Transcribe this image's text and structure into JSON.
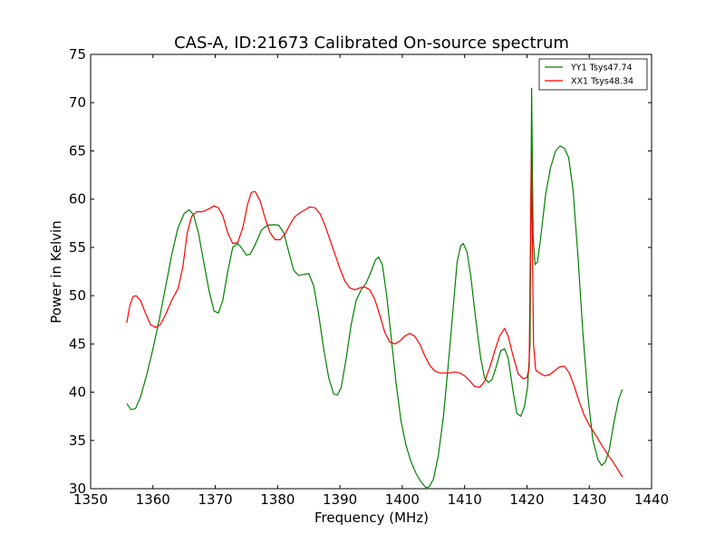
{
  "chart_data": {
    "type": "line",
    "title": "CAS-A, ID:21673 Calibrated On-source spectrum",
    "xlabel": "Frequency (MHz)",
    "ylabel": "Power in Kelvin",
    "xlim": [
      1350,
      1440
    ],
    "ylim": [
      30,
      75
    ],
    "xticks": [
      "1350",
      "1360",
      "1370",
      "1380",
      "1390",
      "1400",
      "1410",
      "1420",
      "1430",
      "1440"
    ],
    "yticks": [
      "30",
      "35",
      "40",
      "45",
      "50",
      "55",
      "60",
      "65",
      "70",
      "75"
    ],
    "grid": false,
    "legend_position": "top-right",
    "series": [
      {
        "name": "YY1 Tsys47.74",
        "color": "#008000",
        "points": [
          [
            1355.8,
            38.8
          ],
          [
            1356.5,
            38.2
          ],
          [
            1357.2,
            38.3
          ],
          [
            1358,
            39.5
          ],
          [
            1359,
            41.8
          ],
          [
            1360,
            44.5
          ],
          [
            1361,
            47.5
          ],
          [
            1362,
            50.8
          ],
          [
            1363,
            54.2
          ],
          [
            1364,
            57
          ],
          [
            1365,
            58.5
          ],
          [
            1365.8,
            58.9
          ],
          [
            1366.5,
            58.4
          ],
          [
            1367.3,
            56.5
          ],
          [
            1368,
            54
          ],
          [
            1369,
            50.5
          ],
          [
            1369.8,
            48.4
          ],
          [
            1370.5,
            48.2
          ],
          [
            1371.2,
            49.5
          ],
          [
            1372,
            52.5
          ],
          [
            1372.8,
            55
          ],
          [
            1373.6,
            55.4
          ],
          [
            1374.4,
            54.8
          ],
          [
            1375,
            54.2
          ],
          [
            1375.6,
            54.3
          ],
          [
            1376.4,
            55.3
          ],
          [
            1377.4,
            56.8
          ],
          [
            1378.4,
            57.3
          ],
          [
            1379.4,
            57.35
          ],
          [
            1380.2,
            57.3
          ],
          [
            1381,
            56.5
          ],
          [
            1381.8,
            54.5
          ],
          [
            1382.6,
            52.6
          ],
          [
            1383.4,
            52.1
          ],
          [
            1384.2,
            52.2
          ],
          [
            1385,
            52.3
          ],
          [
            1385.8,
            51
          ],
          [
            1386.6,
            48
          ],
          [
            1387.4,
            44.5
          ],
          [
            1388.2,
            41.5
          ],
          [
            1389,
            39.8
          ],
          [
            1389.6,
            39.7
          ],
          [
            1390.2,
            40.5
          ],
          [
            1391,
            43.5
          ],
          [
            1391.8,
            47
          ],
          [
            1392.6,
            49.5
          ],
          [
            1393.4,
            50.6
          ],
          [
            1394.2,
            51.3
          ],
          [
            1395,
            52.5
          ],
          [
            1395.7,
            53.7
          ],
          [
            1396.2,
            54
          ],
          [
            1396.8,
            53.2
          ],
          [
            1397.5,
            50
          ],
          [
            1398.3,
            45.2
          ],
          [
            1399,
            41
          ],
          [
            1399.8,
            37
          ],
          [
            1400.6,
            34.5
          ],
          [
            1401.4,
            32.8
          ],
          [
            1402.2,
            31.6
          ],
          [
            1403,
            30.7
          ],
          [
            1403.8,
            30.1
          ],
          [
            1404.3,
            30.2
          ],
          [
            1405,
            31
          ],
          [
            1405.8,
            33.5
          ],
          [
            1406.6,
            37.5
          ],
          [
            1407.4,
            43
          ],
          [
            1408.2,
            49
          ],
          [
            1408.8,
            53.5
          ],
          [
            1409.4,
            55.2
          ],
          [
            1409.8,
            55.4
          ],
          [
            1410.4,
            54.5
          ],
          [
            1411,
            52
          ],
          [
            1411.8,
            47.5
          ],
          [
            1412.6,
            43.5
          ],
          [
            1413.2,
            41.5
          ],
          [
            1413.8,
            41
          ],
          [
            1414.4,
            41.3
          ],
          [
            1415,
            42.5
          ],
          [
            1415.8,
            44.3
          ],
          [
            1416.4,
            44.5
          ],
          [
            1417,
            43.5
          ],
          [
            1417.8,
            40
          ],
          [
            1418.4,
            37.8
          ],
          [
            1419,
            37.5
          ],
          [
            1419.6,
            38.5
          ],
          [
            1420.1,
            40.5
          ],
          [
            1420.5,
            45
          ],
          [
            1420.75,
            71.5
          ],
          [
            1421,
            56
          ],
          [
            1421.3,
            53.2
          ],
          [
            1421.7,
            53.5
          ],
          [
            1422.2,
            56
          ],
          [
            1423,
            60.5
          ],
          [
            1423.8,
            63.3
          ],
          [
            1424.6,
            65
          ],
          [
            1425.3,
            65.5
          ],
          [
            1426,
            65.3
          ],
          [
            1426.7,
            64.3
          ],
          [
            1427.4,
            61
          ],
          [
            1428.2,
            54
          ],
          [
            1429,
            46
          ],
          [
            1429.8,
            39.5
          ],
          [
            1430.6,
            35
          ],
          [
            1431.4,
            33
          ],
          [
            1432,
            32.4
          ],
          [
            1432.6,
            32.8
          ],
          [
            1433.2,
            34
          ],
          [
            1434,
            37
          ],
          [
            1434.7,
            39.2
          ],
          [
            1435.3,
            40.3
          ]
        ]
      },
      {
        "name": "XX1 Tsys48.34",
        "color": "#ff0000",
        "points": [
          [
            1355.8,
            47.2
          ],
          [
            1356.3,
            49
          ],
          [
            1356.8,
            49.9
          ],
          [
            1357.3,
            50
          ],
          [
            1358,
            49.5
          ],
          [
            1358.8,
            48.2
          ],
          [
            1359.6,
            47
          ],
          [
            1360.4,
            46.7
          ],
          [
            1361.2,
            47
          ],
          [
            1362,
            48
          ],
          [
            1363,
            49.5
          ],
          [
            1364,
            50.7
          ],
          [
            1364.8,
            53
          ],
          [
            1365.5,
            56.5
          ],
          [
            1366.2,
            58.2
          ],
          [
            1367,
            58.7
          ],
          [
            1368,
            58.7
          ],
          [
            1369,
            59
          ],
          [
            1369.8,
            59.3
          ],
          [
            1370.5,
            59.1
          ],
          [
            1371.2,
            58.3
          ],
          [
            1372,
            56.5
          ],
          [
            1372.8,
            55.4
          ],
          [
            1373.6,
            55.5
          ],
          [
            1374.4,
            57
          ],
          [
            1375.2,
            59.5
          ],
          [
            1375.8,
            60.7
          ],
          [
            1376.4,
            60.8
          ],
          [
            1377.2,
            59.8
          ],
          [
            1378,
            58
          ],
          [
            1378.8,
            56.5
          ],
          [
            1379.6,
            55.8
          ],
          [
            1380.4,
            55.8
          ],
          [
            1381.2,
            56.4
          ],
          [
            1382,
            57.4
          ],
          [
            1382.8,
            58.2
          ],
          [
            1383.6,
            58.6
          ],
          [
            1384.4,
            58.9
          ],
          [
            1385.2,
            59.2
          ],
          [
            1386,
            59.1
          ],
          [
            1386.8,
            58.5
          ],
          [
            1387.6,
            57.3
          ],
          [
            1388.4,
            55.8
          ],
          [
            1389.2,
            54.3
          ],
          [
            1390,
            52.8
          ],
          [
            1390.8,
            51.5
          ],
          [
            1391.6,
            50.8
          ],
          [
            1392.4,
            50.6
          ],
          [
            1393.2,
            50.8
          ],
          [
            1394,
            50.9
          ],
          [
            1394.8,
            50.6
          ],
          [
            1395.6,
            49.6
          ],
          [
            1396.4,
            48
          ],
          [
            1397.2,
            46.2
          ],
          [
            1398,
            45.2
          ],
          [
            1398.8,
            45
          ],
          [
            1399.6,
            45.3
          ],
          [
            1400.4,
            45.8
          ],
          [
            1401.2,
            46.1
          ],
          [
            1402,
            45.8
          ],
          [
            1402.8,
            45
          ],
          [
            1403.6,
            43.8
          ],
          [
            1404.4,
            42.8
          ],
          [
            1405.2,
            42.2
          ],
          [
            1406,
            42
          ],
          [
            1406.8,
            42
          ],
          [
            1407.6,
            42
          ],
          [
            1408.4,
            42.1
          ],
          [
            1409.2,
            42
          ],
          [
            1410,
            41.7
          ],
          [
            1410.8,
            41.2
          ],
          [
            1411.6,
            40.6
          ],
          [
            1412.4,
            40.5
          ],
          [
            1413.2,
            41.1
          ],
          [
            1414,
            42.5
          ],
          [
            1414.8,
            44.2
          ],
          [
            1415.6,
            45.8
          ],
          [
            1416.4,
            46.6
          ],
          [
            1417,
            45.8
          ],
          [
            1417.8,
            43.7
          ],
          [
            1418.6,
            41.9
          ],
          [
            1419.4,
            41.4
          ],
          [
            1420,
            41.5
          ],
          [
            1420.35,
            42.5
          ],
          [
            1420.7,
            64.7
          ],
          [
            1421.05,
            45
          ],
          [
            1421.4,
            42.3
          ],
          [
            1422,
            42
          ],
          [
            1422.8,
            41.7
          ],
          [
            1423.6,
            41.8
          ],
          [
            1424.4,
            42.2
          ],
          [
            1425.2,
            42.6
          ],
          [
            1426,
            42.7
          ],
          [
            1426.8,
            42
          ],
          [
            1427.6,
            40.6
          ],
          [
            1428.4,
            39
          ],
          [
            1429.2,
            37.6
          ],
          [
            1430,
            36.6
          ],
          [
            1431,
            35.6
          ],
          [
            1432,
            34.5
          ],
          [
            1433,
            33.5
          ],
          [
            1434,
            32.6
          ],
          [
            1435.3,
            31.2
          ]
        ]
      }
    ]
  }
}
